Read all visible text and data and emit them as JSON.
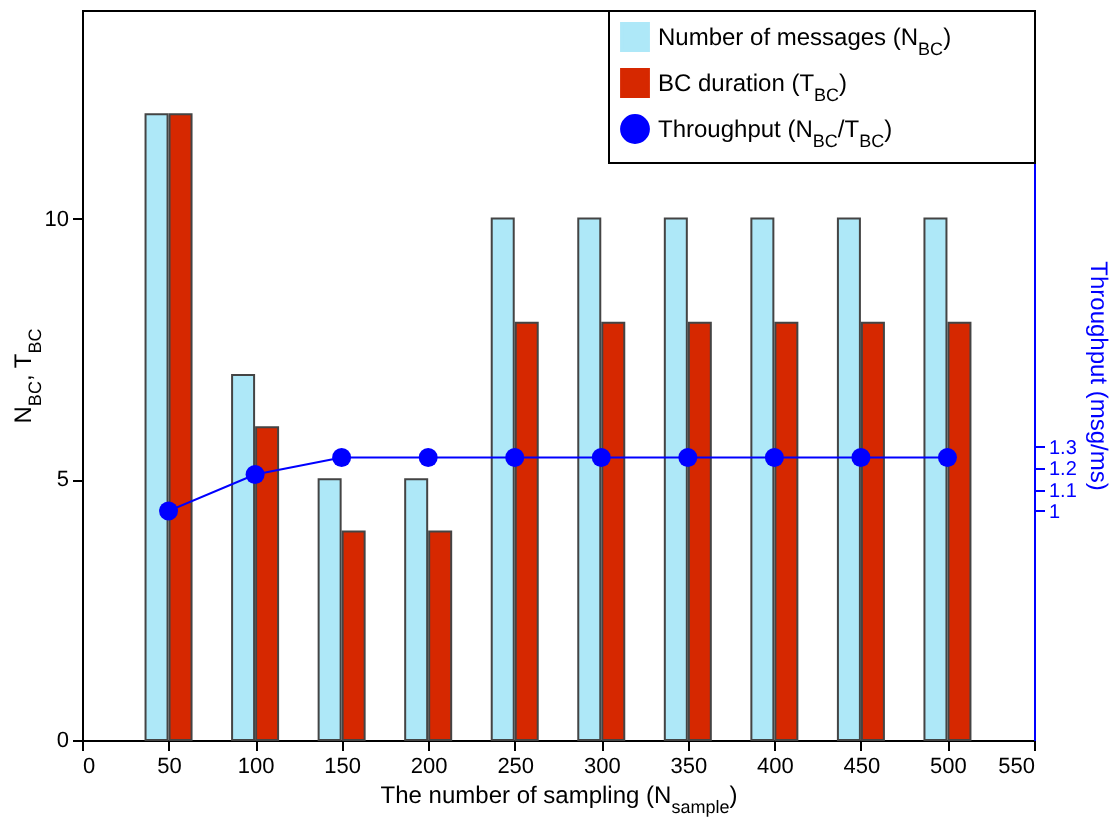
{
  "chart_data": {
    "type": "bar",
    "x": [
      50,
      100,
      150,
      200,
      250,
      300,
      350,
      400,
      450,
      500
    ],
    "series": [
      {
        "name": "Number of messages (N$_{BC}$)",
        "color": "#aee8f8",
        "values": [
          12,
          7,
          5,
          5,
          10,
          10,
          10,
          10,
          10,
          10
        ]
      },
      {
        "name": "BC duration (T$_{BC}$)",
        "color": "#d62800",
        "values": [
          12,
          6,
          4,
          4,
          8,
          8,
          8,
          8,
          8,
          8
        ]
      },
      {
        "name": "Throughput (N$_{BC}$/T$_{BC}$)",
        "type": "line",
        "axis": "y2",
        "color": "#0000ff",
        "values": [
          1,
          1.17,
          1.25,
          1.25,
          1.25,
          1.25,
          1.25,
          1.25,
          1.25,
          1.25
        ]
      }
    ],
    "xlim": [
      0,
      550
    ],
    "xticks": [
      0,
      50,
      100,
      150,
      200,
      250,
      300,
      350,
      400,
      450,
      500,
      550
    ],
    "ylim": [
      0,
      14
    ],
    "yticks": [
      0,
      5,
      10
    ],
    "y2lim": [
      -0.07,
      3.34
    ],
    "y2ticks": [
      1,
      1.1,
      1.2,
      1.3
    ],
    "xlabel": "The number of sampling (N$_{sample}$)",
    "ylabel": "N$_{BC}$, T$_{BC}$",
    "y2label": "Throughput (msg/ms)",
    "legend": "top right",
    "marker": "circle",
    "grid": false
  }
}
